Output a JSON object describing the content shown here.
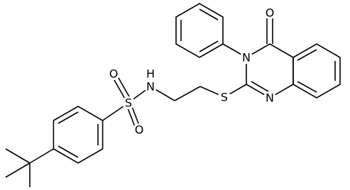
{
  "atoms": [
    "O",
    "O",
    "S",
    "H",
    "N",
    "S",
    "N",
    "N",
    "O"
  ]
}
